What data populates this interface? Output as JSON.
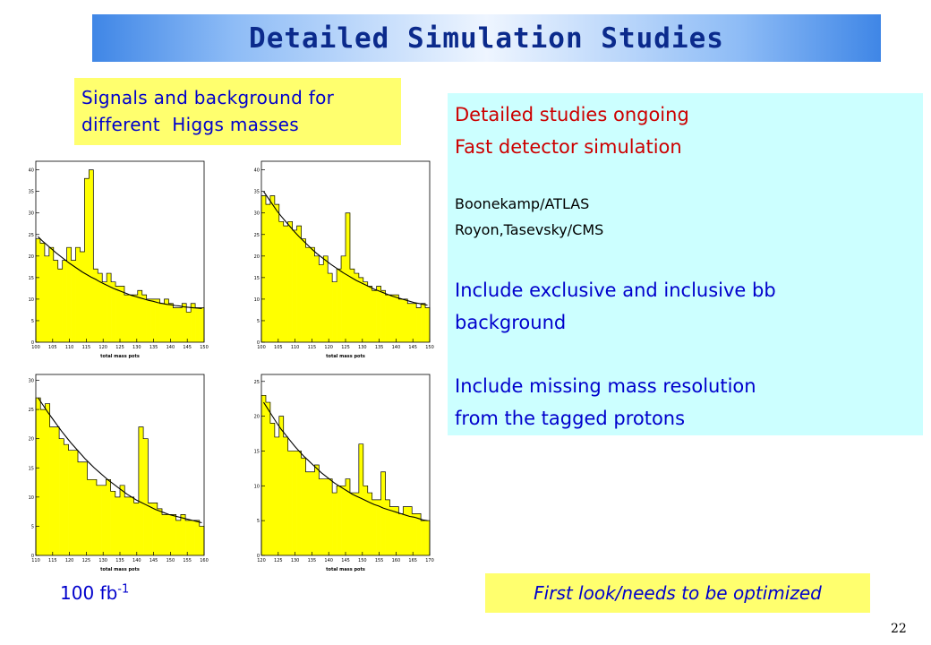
{
  "slide": {
    "title": "Detailed Simulation Studies",
    "signals_label": "Signals and background for\ndifferent  Higgs masses",
    "info": {
      "line1": "Detailed studies ongoing",
      "line2": "Fast detector simulation",
      "line3": "Boonekamp/ATLAS",
      "line4": "Royon,Tasevsky/CMS",
      "line5": "Include exclusive and inclusive bb",
      "line6": "background",
      "line7": "Include missing mass resolution",
      "line8": "from the tagged protons"
    },
    "luminosity_value": "100 fb",
    "luminosity_exponent": "-1",
    "note": "First look/needs to be optimized",
    "page_number": "22"
  },
  "chart_data": [
    {
      "type": "bar",
      "xlabel": "total mass pots",
      "xticks": [
        "100",
        "105",
        "110",
        "115",
        "120",
        "125",
        "130",
        "135",
        "140",
        "145",
        "150"
      ],
      "xlim": [
        100,
        150
      ],
      "yticks": [
        "0",
        "5",
        "10",
        "15",
        "20",
        "25",
        "30",
        "35",
        "40"
      ],
      "ylim": [
        0,
        42
      ],
      "fill_color": "#ffff00",
      "values": [
        24,
        23,
        20,
        22,
        19,
        17,
        19,
        22,
        19,
        22,
        21,
        38,
        40,
        17,
        16,
        14,
        16,
        14,
        13,
        13,
        11,
        11,
        11,
        12,
        11,
        10,
        10,
        10,
        9,
        10,
        9,
        8,
        8,
        9,
        7,
        9,
        8,
        8
      ],
      "fit": [
        24.5,
        23.5,
        22.6,
        21.7,
        20.8,
        20,
        19.2,
        18.4,
        17.7,
        17,
        16.3,
        15.7,
        15.1,
        14.6,
        14,
        13.5,
        13,
        12.5,
        12.1,
        11.7,
        11.3,
        10.9,
        10.6,
        10.3,
        10,
        9.7,
        9.5,
        9.2,
        9,
        8.8,
        8.7,
        8.5,
        8.4,
        8.2,
        8.1,
        8,
        7.9,
        7.8
      ]
    },
    {
      "type": "bar",
      "xlabel": "total mass pots",
      "xticks": [
        "100",
        "105",
        "110",
        "115",
        "120",
        "125",
        "130",
        "135",
        "140",
        "145",
        "150"
      ],
      "xlim": [
        100,
        150
      ],
      "yticks": [
        "0",
        "5",
        "10",
        "15",
        "20",
        "25",
        "30",
        "35",
        "40"
      ],
      "ylim": [
        0,
        42
      ],
      "fill_color": "#ffff00",
      "values": [
        34,
        32,
        34,
        32,
        28,
        27,
        28,
        26,
        27,
        24,
        22,
        22,
        20,
        18,
        20,
        16,
        14,
        17,
        20,
        30,
        17,
        16,
        15,
        14,
        13,
        12,
        13,
        12,
        11,
        11,
        11,
        10,
        10,
        9,
        9,
        8,
        9,
        8
      ],
      "fit": [
        35,
        33.5,
        32,
        30.5,
        29.2,
        28,
        26.8,
        25.6,
        24.5,
        23.5,
        22.5,
        21.5,
        20.6,
        19.8,
        19,
        18.2,
        17.5,
        16.8,
        16.1,
        15.5,
        14.9,
        14.3,
        13.8,
        13.3,
        12.8,
        12.3,
        11.9,
        11.5,
        11.1,
        10.7,
        10.4,
        10.1,
        9.8,
        9.5,
        9.2,
        9,
        8.8,
        8.6
      ]
    },
    {
      "type": "bar",
      "xlabel": "total mass pots",
      "xticks": [
        "110",
        "115",
        "120",
        "125",
        "130",
        "135",
        "140",
        "145",
        "150",
        "155",
        "160"
      ],
      "xlim": [
        110,
        160
      ],
      "yticks": [
        "0",
        "5",
        "10",
        "15",
        "20",
        "25",
        "30"
      ],
      "ylim": [
        0,
        31
      ],
      "fill_color": "#ffff00",
      "values": [
        27,
        25,
        26,
        22,
        22,
        20,
        19,
        18,
        18,
        16,
        16,
        13,
        13,
        12,
        12,
        13,
        11,
        10,
        12,
        10,
        10,
        9,
        22,
        20,
        9,
        9,
        8,
        7,
        7,
        7,
        6,
        7,
        6,
        6,
        6,
        5
      ],
      "fit": [
        27,
        25.8,
        24.6,
        23.5,
        22.4,
        21.3,
        20.3,
        19.3,
        18.4,
        17.5,
        16.6,
        15.8,
        15,
        14.3,
        13.6,
        12.9,
        12.3,
        11.7,
        11.1,
        10.5,
        10,
        9.5,
        9.1,
        8.7,
        8.3,
        7.9,
        7.6,
        7.3,
        7,
        6.8,
        6.6,
        6.4,
        6.2,
        6,
        5.8,
        5.6
      ]
    },
    {
      "type": "bar",
      "xlabel": "total mass pots",
      "xticks": [
        "120",
        "125",
        "130",
        "135",
        "140",
        "145",
        "150",
        "155",
        "160",
        "165",
        "170"
      ],
      "xlim": [
        120,
        170
      ],
      "yticks": [
        "0",
        "5",
        "10",
        "15",
        "20",
        "25"
      ],
      "ylim": [
        0,
        26
      ],
      "fill_color": "#ffff00",
      "values": [
        23,
        22,
        19,
        17,
        20,
        17,
        15,
        15,
        15,
        14,
        12,
        12,
        13,
        11,
        11,
        11,
        9,
        10,
        10,
        11,
        9,
        9,
        16,
        10,
        9,
        8,
        8,
        12,
        8,
        7,
        7,
        6,
        7,
        7,
        6,
        6,
        5,
        5
      ],
      "fit": [
        22,
        21,
        20,
        19,
        18.1,
        17.3,
        16.5,
        15.7,
        15,
        14.3,
        13.7,
        13.1,
        12.5,
        11.9,
        11.4,
        10.9,
        10.4,
        10,
        9.6,
        9.2,
        8.8,
        8.5,
        8.2,
        7.9,
        7.6,
        7.3,
        7.1,
        6.8,
        6.6,
        6.4,
        6.2,
        6,
        5.8,
        5.6,
        5.5,
        5.3,
        5.1,
        5
      ]
    }
  ]
}
